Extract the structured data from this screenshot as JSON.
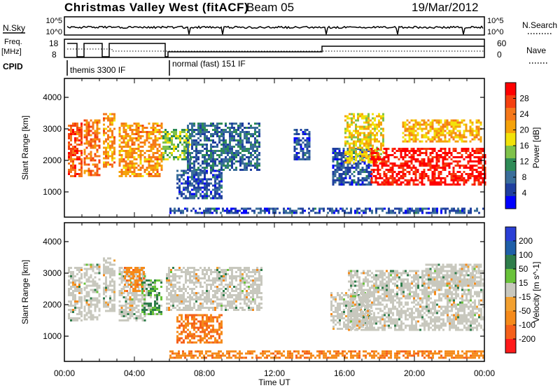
{
  "header": {
    "title": "Christmas Valley West (fitACF)",
    "beam": "Beam 05",
    "date": "19/Mar/2012"
  },
  "nsky_panel": {
    "left_label": "N.Sky",
    "left_ticks": [
      "10^5",
      "10^0"
    ],
    "right_label": "N.Search",
    "right_ticks": [
      "10^5",
      "10^0"
    ]
  },
  "freq_panel": {
    "left_label_line1": "Freq.",
    "left_label_line2": "[MHz]",
    "left_ticks": [
      "18",
      "8"
    ],
    "right_label": "Nave",
    "right_ticks": [
      "60",
      "0"
    ]
  },
  "cpid": {
    "label": "CPID",
    "modes": [
      {
        "text": "themis 3300 IF",
        "start_hour": 0.0
      },
      {
        "text": "normal (fast) 151 IF",
        "start_hour": 6.0
      }
    ]
  },
  "time_axis": {
    "xlabel": "Time UT",
    "ticks": [
      "00:00",
      "04:00",
      "08:00",
      "12:00",
      "16:00",
      "20:00",
      "00:00"
    ]
  },
  "colors": {
    "power_scale": [
      "#0000ff",
      "#1f3f9f",
      "#3a6e9a",
      "#2e8b57",
      "#7fc24a",
      "#f2e20a",
      "#f5a20a",
      "#f5781a",
      "#f5400f",
      "#ff0000"
    ],
    "velocity_scale": [
      "#2a3fd6",
      "#1f5fa8",
      "#2e7d4a",
      "#69c23a",
      "#c8c8be",
      "#f2a030",
      "#f58a1a",
      "#f5601a",
      "#ff1a1a"
    ]
  },
  "chart_data": [
    {
      "type": "heatmap",
      "title": "",
      "xlabel": "Time UT",
      "ylabel": "Slant Range [km]",
      "xlim_hours": [
        0,
        24
      ],
      "ylim": [
        200,
        4600
      ],
      "yticks": [
        1000,
        2000,
        3000,
        4000
      ],
      "colorbar": {
        "label": "Power [dB]",
        "range": [
          0,
          32
        ],
        "ticks": [
          4,
          8,
          12,
          16,
          20,
          24,
          28
        ]
      },
      "regions": [
        {
          "t0": 0.2,
          "t1": 1.0,
          "r0": 1500,
          "r1": 3200,
          "level": 26
        },
        {
          "t0": 1.1,
          "t1": 2.0,
          "r0": 1500,
          "r1": 3300,
          "level": 24
        },
        {
          "t0": 2.2,
          "t1": 2.9,
          "r0": 1800,
          "r1": 3500,
          "level": 22
        },
        {
          "t0": 3.1,
          "t1": 5.6,
          "r0": 1500,
          "r1": 3200,
          "level": 22
        },
        {
          "t0": 5.6,
          "t1": 7.2,
          "r0": 2000,
          "r1": 3000,
          "level": 14
        },
        {
          "t0": 6.4,
          "t1": 9.0,
          "r0": 800,
          "r1": 1700,
          "level": 6
        },
        {
          "t0": 7.0,
          "t1": 11.2,
          "r0": 1700,
          "r1": 3200,
          "level": 8
        },
        {
          "t0": 13.1,
          "t1": 14.0,
          "r0": 2000,
          "r1": 3000,
          "level": 6
        },
        {
          "t0": 15.3,
          "t1": 17.5,
          "r0": 1200,
          "r1": 2400,
          "level": 6
        },
        {
          "t0": 16.0,
          "t1": 18.2,
          "r0": 1900,
          "r1": 3500,
          "level": 18
        },
        {
          "t0": 17.5,
          "t1": 24.0,
          "r0": 1200,
          "r1": 2400,
          "level": 30
        },
        {
          "t0": 19.3,
          "t1": 23.8,
          "r0": 2600,
          "r1": 3300,
          "level": 20
        },
        {
          "t0": 6.0,
          "t1": 24.0,
          "r0": 300,
          "r1": 500,
          "level": 6
        }
      ]
    },
    {
      "type": "heatmap",
      "title": "",
      "xlabel": "Time UT",
      "ylabel": "Slant Range [km]",
      "xlim_hours": [
        0,
        24
      ],
      "ylim": [
        200,
        4600
      ],
      "yticks": [
        1000,
        2000,
        3000,
        4000
      ],
      "colorbar": {
        "label": "Velocity [m s^-1]",
        "range": [
          -250,
          250
        ],
        "ticks": [
          200,
          100,
          50,
          15,
          -15,
          -50,
          -100,
          -200
        ]
      },
      "regions": [
        {
          "t0": 0.2,
          "t1": 1.0,
          "r0": 1500,
          "r1": 3200,
          "level": 0
        },
        {
          "t0": 1.1,
          "t1": 2.0,
          "r0": 1500,
          "r1": 3300,
          "level": 0
        },
        {
          "t0": 2.2,
          "t1": 2.9,
          "r0": 1800,
          "r1": 3500,
          "level": 0
        },
        {
          "t0": 3.1,
          "t1": 4.6,
          "r0": 1500,
          "r1": 3200,
          "level": 0
        },
        {
          "t0": 3.4,
          "t1": 4.5,
          "r0": 2400,
          "r1": 3200,
          "level": -60
        },
        {
          "t0": 4.4,
          "t1": 5.6,
          "r0": 1700,
          "r1": 2800,
          "level": 30
        },
        {
          "t0": 5.8,
          "t1": 11.3,
          "r0": 1800,
          "r1": 3200,
          "level": 0
        },
        {
          "t0": 6.4,
          "t1": 9.0,
          "r0": 800,
          "r1": 1700,
          "level": -70
        },
        {
          "t0": 15.2,
          "t1": 17.5,
          "r0": 1200,
          "r1": 2400,
          "level": 0
        },
        {
          "t0": 16.2,
          "t1": 24.0,
          "r0": 1200,
          "r1": 3100,
          "level": 0
        },
        {
          "t0": 20.5,
          "t1": 23.8,
          "r0": 2600,
          "r1": 3300,
          "level": 0
        },
        {
          "t0": 6.0,
          "t1": 24.0,
          "r0": 300,
          "r1": 550,
          "level": -60
        }
      ]
    }
  ]
}
